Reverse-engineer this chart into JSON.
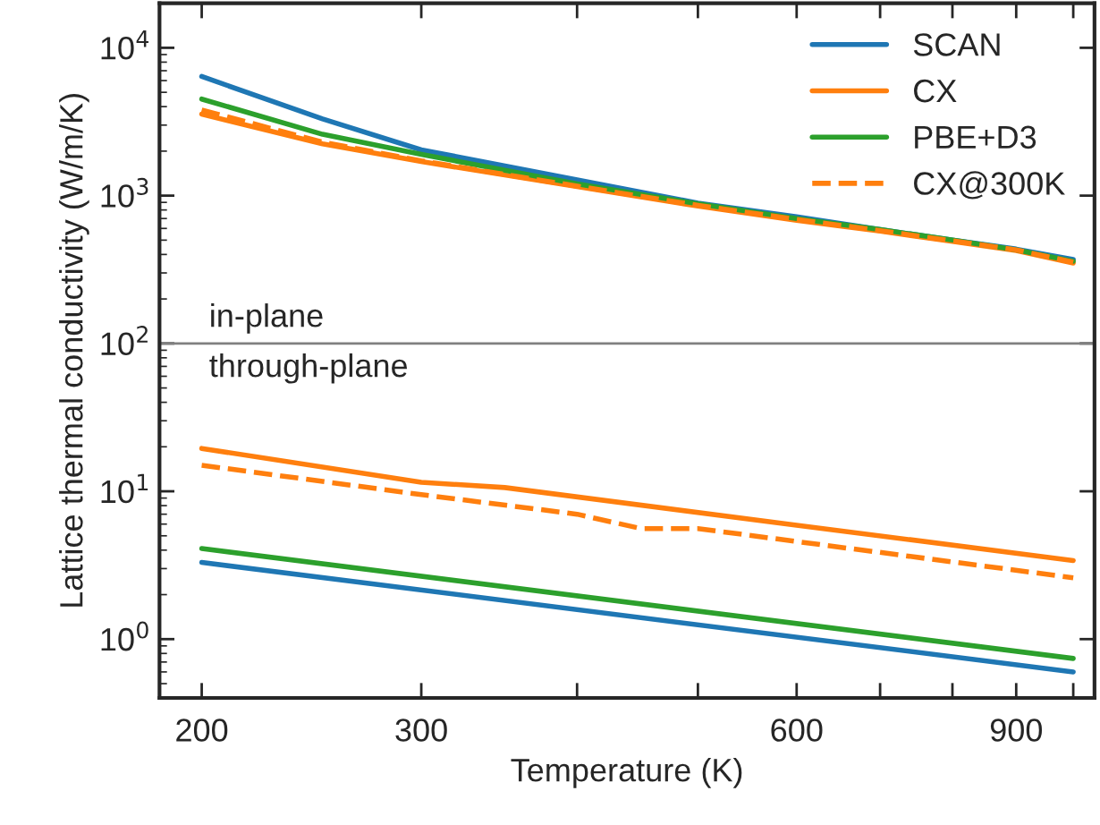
{
  "chart_data": {
    "type": "line",
    "xlabel": "Temperature (K)",
    "ylabel": "Lattice thermal conductivity (W/m/K)",
    "log": "xy",
    "xlim": [
      185,
      1040
    ],
    "ylim": [
      0.4,
      20000
    ],
    "xticks": [
      200,
      300,
      {
        "value": 400,
        "label": null
      },
      {
        "value": 500,
        "label": null
      },
      600,
      {
        "value": 700,
        "label": null
      },
      {
        "value": 800,
        "label": null
      },
      900,
      {
        "value": 1000,
        "label": null
      }
    ],
    "yticks": [
      {
        "value": 1,
        "label": "10$^{0}$"
      },
      {
        "value": 10,
        "label": "10$^{1}$"
      },
      {
        "value": 100,
        "label": "10$^{2}$"
      },
      {
        "value": 1000,
        "label": "10$^{3}$"
      },
      {
        "value": 10000,
        "label": "10$^{4}$"
      }
    ],
    "legend": "top right",
    "grid": false,
    "ref_lines": [
      {
        "axis": "y",
        "value": 100,
        "color": "#808080"
      }
    ],
    "annotations": [
      "in-plane",
      "through-plane"
    ],
    "series": [
      {
        "name": "SCAN",
        "color": "#1f77b4",
        "line_style": "solid",
        "x": [
          200,
          250,
          300,
          400,
          500,
          600,
          700,
          800,
          900,
          1000
        ],
        "values": [
          6400,
          3300,
          2040,
          1280,
          890,
          720,
          590,
          500,
          435,
          370
        ]
      },
      {
        "name": "CX",
        "color": "#ff7f0e",
        "line_style": "solid",
        "x": [
          200,
          250,
          300,
          400,
          500,
          600,
          700,
          800,
          900,
          1000
        ],
        "values": [
          3560,
          2240,
          1700,
          1150,
          850,
          680,
          575,
          490,
          425,
          350
        ]
      },
      {
        "name": "PBE+D3",
        "color": "#2ca02c",
        "line_style": "solid",
        "x": [
          200,
          250,
          300,
          400,
          500,
          600,
          700,
          800,
          900,
          1000
        ],
        "values": [
          4500,
          2600,
          1900,
          1200,
          880,
          700,
          590,
          500,
          430,
          360
        ]
      },
      {
        "name": "CX@300K",
        "color": "#ff7f0e",
        "line_style": "dashed",
        "x": [
          200,
          250,
          300,
          400,
          500,
          600,
          700,
          800,
          900,
          1000
        ],
        "values": [
          3800,
          2300,
          1720,
          1160,
          860,
          690,
          580,
          495,
          430,
          355
        ]
      },
      {
        "color": "#1f77b4",
        "line_style": "solid",
        "x": [
          200,
          1000
        ],
        "values": [
          3.3,
          0.6
        ]
      },
      {
        "color": "#ff7f0e",
        "line_style": "solid",
        "x": [
          200,
          300,
          350,
          600,
          1000
        ],
        "values": [
          19.5,
          11.5,
          10.6,
          5.9,
          3.4
        ]
      },
      {
        "color": "#2ca02c",
        "line_style": "solid",
        "x": [
          200,
          1000
        ],
        "values": [
          4.1,
          0.74
        ]
      },
      {
        "color": "#ff7f0e",
        "line_style": "dashed",
        "x": [
          200,
          300,
          400,
          450,
          500,
          1000
        ],
        "values": [
          15,
          9.5,
          7.0,
          5.6,
          5.6,
          2.6
        ]
      }
    ]
  }
}
